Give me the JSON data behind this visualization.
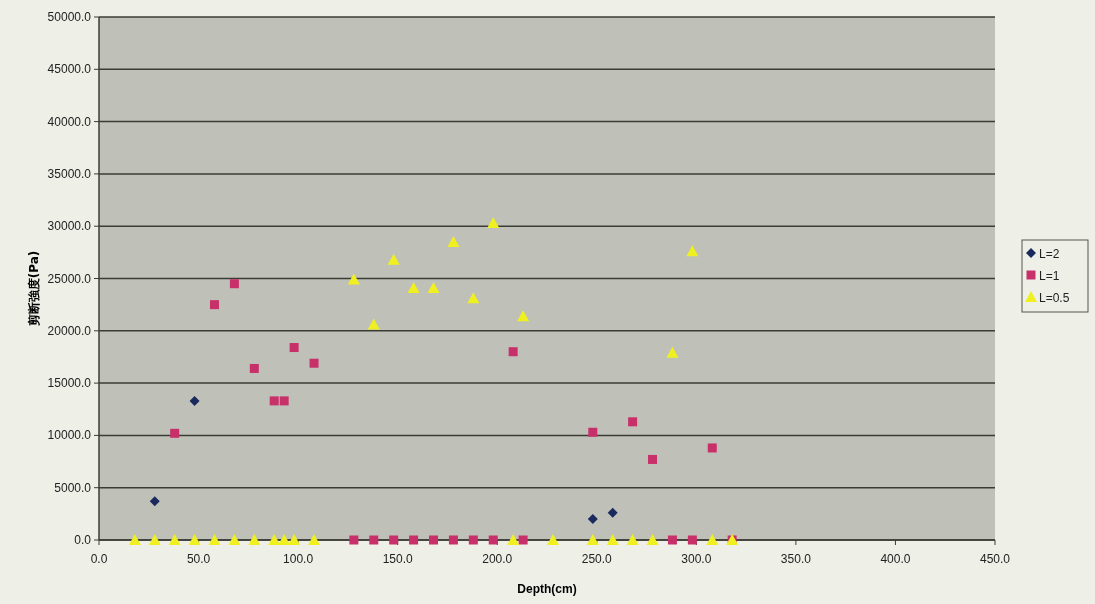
{
  "chart_data": {
    "type": "scatter",
    "xlabel": "Depth(cm)",
    "ylabel": "剪断強度(Pa)",
    "xlim": [
      0,
      450
    ],
    "ylim": [
      0,
      50000
    ],
    "xticks": [
      {
        "value": 0,
        "label": "0.0"
      },
      {
        "value": 50,
        "label": "50.0"
      },
      {
        "value": 100,
        "label": "100.0"
      },
      {
        "value": 150,
        "label": "150.0"
      },
      {
        "value": 200,
        "label": "200.0"
      },
      {
        "value": 250,
        "label": "250.0"
      },
      {
        "value": 300,
        "label": "300.0"
      },
      {
        "value": 350,
        "label": "350.0"
      },
      {
        "value": 400,
        "label": "400.0"
      },
      {
        "value": 450,
        "label": "450.0"
      }
    ],
    "yticks": [
      {
        "value": 0,
        "label": "0.0"
      },
      {
        "value": 5000,
        "label": "5000.0"
      },
      {
        "value": 10000,
        "label": "10000.0"
      },
      {
        "value": 15000,
        "label": "15000.0"
      },
      {
        "value": 20000,
        "label": "20000.0"
      },
      {
        "value": 25000,
        "label": "25000.0"
      },
      {
        "value": 30000,
        "label": "30000.0"
      },
      {
        "value": 35000,
        "label": "35000.0"
      },
      {
        "value": 40000,
        "label": "40000.0"
      },
      {
        "value": 45000,
        "label": "45000.0"
      },
      {
        "value": 50000,
        "label": "50000.0"
      }
    ],
    "grid": "y",
    "legend": "right",
    "series": [
      {
        "name": "L=2",
        "color": "#1b2a5c",
        "marker": "diamond",
        "x": [
          28,
          48,
          248,
          258
        ],
        "values": [
          3700,
          13300,
          2000,
          2600
        ]
      },
      {
        "name": "L=1",
        "color": "#c8306a",
        "marker": "square",
        "x": [
          38,
          58,
          68,
          78,
          88,
          93,
          98,
          108,
          128,
          138,
          148,
          158,
          168,
          178,
          188,
          198,
          208,
          213,
          248,
          268,
          278,
          288,
          298,
          308,
          318
        ],
        "values": [
          10200,
          22500,
          24500,
          16400,
          13300,
          13300,
          18400,
          16900,
          0,
          0,
          0,
          0,
          0,
          0,
          0,
          0,
          18000,
          0,
          10300,
          11300,
          7700,
          0,
          0,
          8800,
          0
        ]
      },
      {
        "name": "L=0.5",
        "color": "#f0f020",
        "marker": "triangle",
        "x": [
          18,
          28,
          38,
          48,
          58,
          68,
          78,
          88,
          93,
          98,
          108,
          128,
          138,
          148,
          158,
          168,
          178,
          188,
          198,
          208,
          213,
          228,
          248,
          258,
          268,
          278,
          288,
          298,
          308,
          318
        ],
        "values": [
          0,
          0,
          0,
          0,
          0,
          0,
          0,
          0,
          0,
          0,
          0,
          24900,
          20600,
          26800,
          24100,
          24100,
          28500,
          23100,
          30300,
          0,
          21400,
          0,
          0,
          0,
          0,
          0,
          17900,
          27600,
          0,
          0
        ]
      }
    ]
  }
}
